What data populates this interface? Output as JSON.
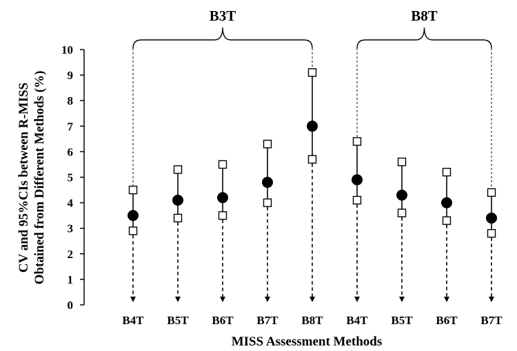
{
  "chart_data": {
    "type": "scatter",
    "xlabel": "MISS Assessment Methods",
    "ylabel_line1": "CV and 95%CIs between R-MISS",
    "ylabel_line2": "Obtained from Different Methods (%)",
    "ylim": [
      0,
      10
    ],
    "yticks": [
      "0",
      "1",
      "2",
      "3",
      "4",
      "5",
      "6",
      "7",
      "8",
      "9",
      "10"
    ],
    "grid": false,
    "groups": [
      {
        "label": "B3T",
        "categories": [
          "B4T",
          "B5T",
          "B6T",
          "B7T",
          "B8T"
        ]
      },
      {
        "label": "B8T",
        "categories": [
          "B4T",
          "B5T",
          "B6T",
          "B7T"
        ]
      }
    ],
    "points": [
      {
        "category": "B4T",
        "cv": 3.5,
        "lower": 2.9,
        "upper": 4.5
      },
      {
        "category": "B5T",
        "cv": 4.1,
        "lower": 3.4,
        "upper": 5.3
      },
      {
        "category": "B6T",
        "cv": 4.2,
        "lower": 3.5,
        "upper": 5.5
      },
      {
        "category": "B7T",
        "cv": 4.8,
        "lower": 4.0,
        "upper": 6.3
      },
      {
        "category": "B8T",
        "cv": 7.0,
        "lower": 5.7,
        "upper": 9.1
      },
      {
        "category": "B4T",
        "cv": 4.9,
        "lower": 4.1,
        "upper": 6.4
      },
      {
        "category": "B5T",
        "cv": 4.3,
        "lower": 3.6,
        "upper": 5.6
      },
      {
        "category": "B6T",
        "cv": 4.0,
        "lower": 3.3,
        "upper": 5.2
      },
      {
        "category": "B7T",
        "cv": 3.4,
        "lower": 2.8,
        "upper": 4.4
      }
    ]
  }
}
